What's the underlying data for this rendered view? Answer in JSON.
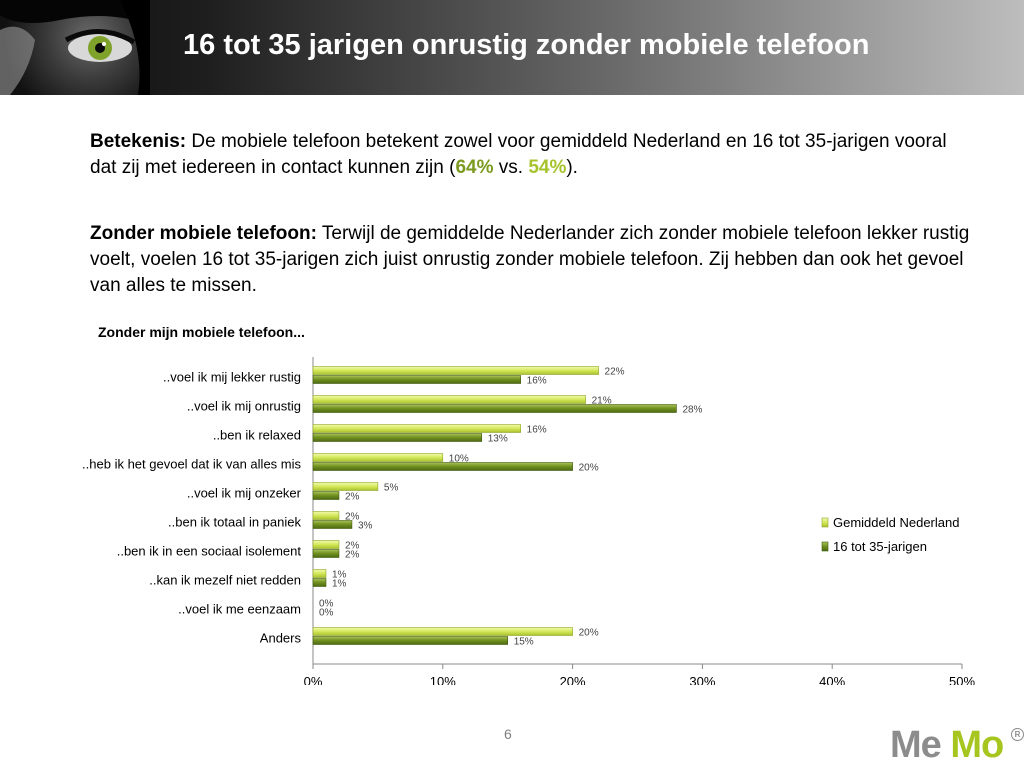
{
  "slide": {
    "title": "16 tot 35 jarigen onrustig zonder mobiele telefoon",
    "para1": {
      "label": "Betekenis:",
      "text": " De mobiele telefoon betekent zowel voor gemiddeld Nederland en 16 tot 35-jarigen vooral dat zij met iedereen in contact kunnen zijn (",
      "value1": "64%",
      "vs": " vs. ",
      "value2": "54%",
      "end": ")."
    },
    "para2": {
      "label": "Zonder mobiele telefoon:",
      "text": " Terwijl de gemiddelde Nederlander zich zonder mobiele telefoon lekker rustig voelt, voelen 16 tot 35-jarigen zich juist onrustig zonder mobiele telefoon. Zij hebben dan ook het gevoel van alles te missen."
    },
    "page_number": "6",
    "logo": {
      "part1": "Me",
      "part2": "Mo",
      "reg": "R"
    }
  },
  "colors": {
    "series1": "#d4e85a",
    "series2": "#6f8f1e"
  },
  "chart_data": {
    "type": "bar",
    "orientation": "horizontal",
    "title": "Zonder mijn mobiele telefoon...",
    "categories": [
      "..voel ik mij lekker rustig",
      "..voel ik mij onrustig",
      "..ben ik relaxed",
      "..heb ik het gevoel dat ik van alles mis",
      "..voel ik mij onzeker",
      "..ben ik totaal in paniek",
      "..ben ik in een sociaal isolement",
      "..kan ik mezelf niet redden",
      "..voel ik me eenzaam",
      "Anders"
    ],
    "series": [
      {
        "name": "Gemiddeld Nederland",
        "values": [
          22,
          21,
          16,
          10,
          5,
          2,
          2,
          1,
          0,
          20
        ]
      },
      {
        "name": "16 tot 35-jarigen",
        "values": [
          16,
          28,
          13,
          20,
          2,
          3,
          2,
          1,
          0,
          15
        ]
      }
    ],
    "xlim": [
      0,
      50
    ],
    "xticks": [
      "0%",
      "10%",
      "20%",
      "30%",
      "40%",
      "50%"
    ],
    "value_suffix": "%",
    "legend": "right"
  }
}
